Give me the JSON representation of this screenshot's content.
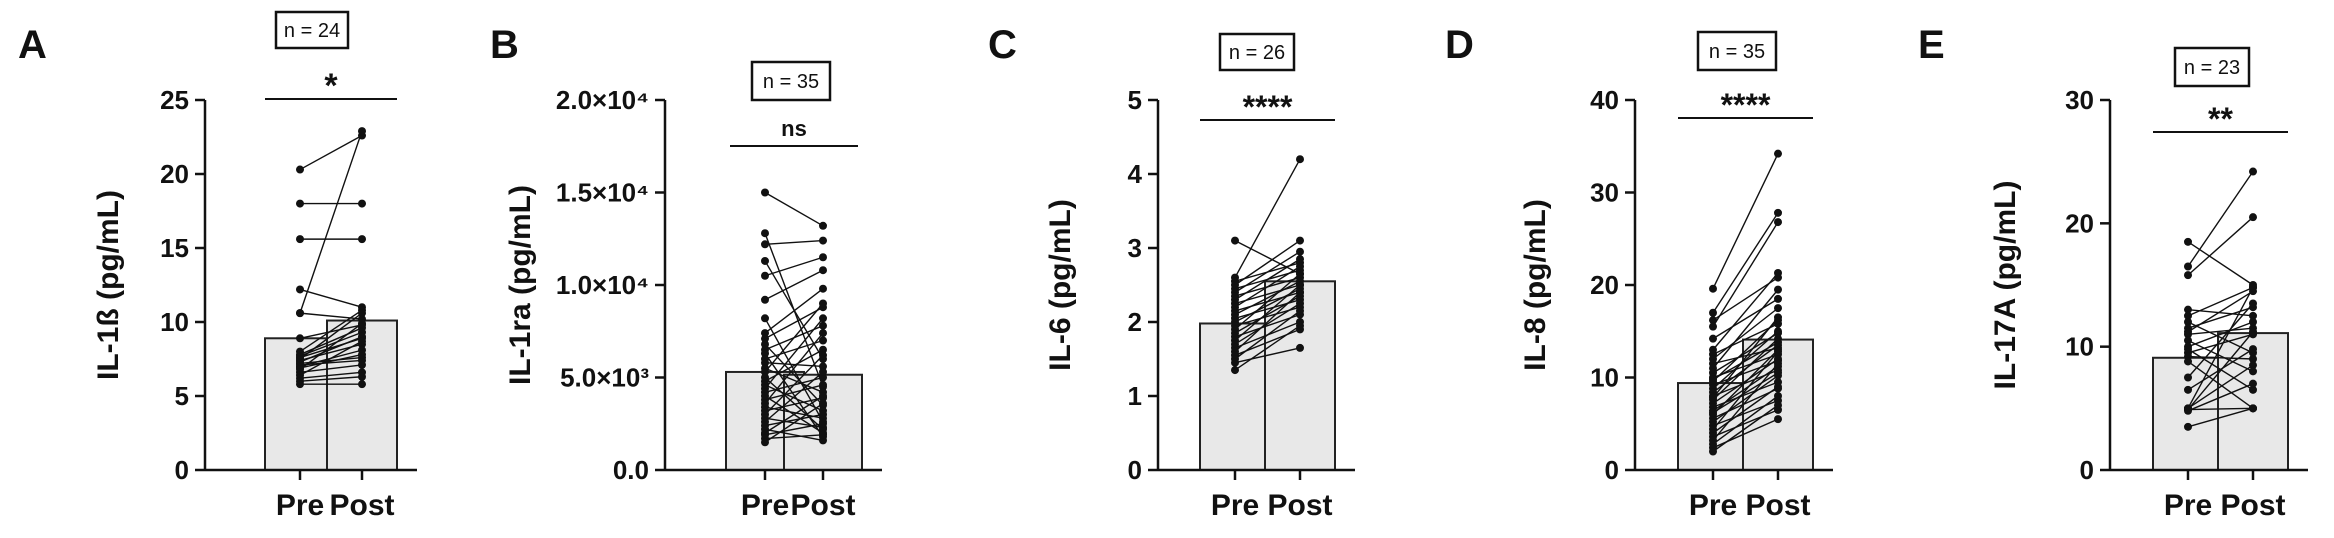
{
  "colors": {
    "bar_fill": "#e8e8e8",
    "bar_stroke": "#222222",
    "line": "#111111",
    "point": "#111111"
  },
  "chart_data": [
    {
      "type": "bar",
      "panel": "A",
      "ylabel": "IL-1ß (pg/mL)",
      "categories": [
        "Pre",
        "Post"
      ],
      "ylim": [
        0,
        25
      ],
      "yticks": [
        0,
        5,
        10,
        15,
        20,
        25
      ],
      "ytick_labels": [
        "0",
        "5",
        "10",
        "15",
        "20",
        "25"
      ],
      "values": [
        8.9,
        10.1
      ],
      "n_label": "n = 24",
      "significance": "*",
      "paired": [
        [
          20.3,
          22.6
        ],
        [
          18.0,
          18.0
        ],
        [
          15.6,
          15.6
        ],
        [
          12.2,
          11.0
        ],
        [
          10.6,
          22.9
        ],
        [
          10.6,
          10.2
        ],
        [
          8.9,
          9.8
        ],
        [
          8.0,
          10.8
        ],
        [
          7.8,
          9.6
        ],
        [
          7.7,
          9.3
        ],
        [
          7.6,
          8.9
        ],
        [
          7.5,
          10.6
        ],
        [
          7.4,
          8.5
        ],
        [
          7.3,
          9.0
        ],
        [
          7.2,
          7.6
        ],
        [
          7.1,
          7.4
        ],
        [
          7.0,
          8.1
        ],
        [
          6.9,
          7.8
        ],
        [
          6.8,
          9.9
        ],
        [
          6.6,
          7.1
        ],
        [
          6.4,
          8.7
        ],
        [
          6.2,
          6.6
        ],
        [
          6.0,
          6.3
        ],
        [
          5.8,
          5.8
        ]
      ]
    },
    {
      "type": "bar",
      "panel": "B",
      "ylabel": "IL-1ra (pg/mL)",
      "categories": [
        "Pre",
        "Post"
      ],
      "ylim": [
        0,
        20000
      ],
      "yticks": [
        0,
        5000,
        10000,
        15000,
        20000
      ],
      "ytick_labels": [
        "0.0",
        "5.0×10³",
        "1.0×10⁴",
        "1.5×10⁴",
        "2.0×10⁴"
      ],
      "values": [
        5300,
        5150
      ],
      "n_label": "n = 35",
      "significance": "ns",
      "paired": [
        [
          15000,
          13200
        ],
        [
          12800,
          4500
        ],
        [
          12200,
          12400
        ],
        [
          11300,
          6000
        ],
        [
          10500,
          11500
        ],
        [
          9200,
          10800
        ],
        [
          8200,
          2600
        ],
        [
          7400,
          9800
        ],
        [
          7100,
          8800
        ],
        [
          6800,
          3500
        ],
        [
          6500,
          7800
        ],
        [
          6300,
          1800
        ],
        [
          6000,
          7000
        ],
        [
          5800,
          5600
        ],
        [
          5500,
          4200
        ],
        [
          5300,
          9000
        ],
        [
          5000,
          2200
        ],
        [
          4800,
          6500
        ],
        [
          4600,
          3200
        ],
        [
          4400,
          8200
        ],
        [
          4200,
          5000
        ],
        [
          4000,
          2000
        ],
        [
          3800,
          4600
        ],
        [
          3600,
          7400
        ],
        [
          3400,
          2800
        ],
        [
          3200,
          3900
        ],
        [
          3000,
          6200
        ],
        [
          2800,
          2300
        ],
        [
          2600,
          5300
        ],
        [
          2400,
          3000
        ],
        [
          2200,
          1600
        ],
        [
          2000,
          4000
        ],
        [
          1900,
          2500
        ],
        [
          1700,
          1900
        ],
        [
          1500,
          3600
        ]
      ]
    },
    {
      "type": "bar",
      "panel": "C",
      "ylabel": "IL-6 (pg/mL)",
      "categories": [
        "Pre",
        "Post"
      ],
      "ylim": [
        0,
        5
      ],
      "yticks": [
        0,
        1,
        2,
        3,
        4,
        5
      ],
      "ytick_labels": [
        "0",
        "1",
        "2",
        "3",
        "4",
        "5"
      ],
      "values": [
        1.98,
        2.55
      ],
      "n_label": "n = 26",
      "significance": "****",
      "paired": [
        [
          3.1,
          2.65
        ],
        [
          2.6,
          4.2
        ],
        [
          2.55,
          2.8
        ],
        [
          2.5,
          3.1
        ],
        [
          2.45,
          2.7
        ],
        [
          2.4,
          2.95
        ],
        [
          2.35,
          2.6
        ],
        [
          2.3,
          2.85
        ],
        [
          2.25,
          2.5
        ],
        [
          2.2,
          2.75
        ],
        [
          2.15,
          2.4
        ],
        [
          2.1,
          2.55
        ],
        [
          2.05,
          2.3
        ],
        [
          2.0,
          2.45
        ],
        [
          1.95,
          2.2
        ],
        [
          1.9,
          2.65
        ],
        [
          1.85,
          2.35
        ],
        [
          1.8,
          2.1
        ],
        [
          1.75,
          2.5
        ],
        [
          1.7,
          2.25
        ],
        [
          1.65,
          2.0
        ],
        [
          1.6,
          2.4
        ],
        [
          1.55,
          1.9
        ],
        [
          1.5,
          2.15
        ],
        [
          1.45,
          1.65
        ],
        [
          1.35,
          1.95
        ]
      ]
    },
    {
      "type": "bar",
      "panel": "D",
      "ylabel": "IL-8 (pg/mL)",
      "categories": [
        "Pre",
        "Post"
      ],
      "ylim": [
        0,
        40
      ],
      "yticks": [
        0,
        10,
        20,
        30,
        40
      ],
      "ytick_labels": [
        "0",
        "10",
        "20",
        "30",
        "40"
      ],
      "values": [
        9.4,
        14.1
      ],
      "n_label": "n = 35",
      "significance": "****",
      "paired": [
        [
          19.6,
          34.2
        ],
        [
          17.0,
          27.8
        ],
        [
          16.2,
          20.8
        ],
        [
          15.5,
          26.8
        ],
        [
          14.2,
          18.5
        ],
        [
          13.0,
          21.3
        ],
        [
          12.5,
          15.8
        ],
        [
          12.0,
          17.5
        ],
        [
          11.5,
          13.2
        ],
        [
          11.0,
          19.5
        ],
        [
          10.5,
          14.8
        ],
        [
          10.0,
          12.5
        ],
        [
          9.6,
          16.2
        ],
        [
          9.2,
          11.8
        ],
        [
          8.8,
          15.0
        ],
        [
          8.4,
          13.5
        ],
        [
          8.0,
          10.8
        ],
        [
          7.6,
          14.2
        ],
        [
          7.2,
          12.0
        ],
        [
          6.8,
          9.5
        ],
        [
          6.4,
          11.2
        ],
        [
          6.0,
          13.0
        ],
        [
          5.6,
          8.8
        ],
        [
          5.2,
          10.2
        ],
        [
          4.8,
          7.5
        ],
        [
          4.4,
          12.8
        ],
        [
          4.0,
          9.0
        ],
        [
          3.6,
          6.5
        ],
        [
          3.2,
          11.5
        ],
        [
          2.8,
          8.0
        ],
        [
          2.4,
          5.5
        ],
        [
          2.0,
          7.0
        ],
        [
          6.2,
          10.5
        ],
        [
          7.8,
          16.5
        ],
        [
          9.8,
          13.8
        ]
      ]
    },
    {
      "type": "bar",
      "panel": "E",
      "ylabel": "IL-17A (pg/mL)",
      "categories": [
        "Pre",
        "Post"
      ],
      "ylim": [
        0,
        30
      ],
      "yticks": [
        0,
        10,
        20,
        30
      ],
      "ytick_labels": [
        "0",
        "10",
        "20",
        "30"
      ],
      "values": [
        9.1,
        11.1
      ],
      "n_label": "n = 23",
      "significance": "**",
      "paired": [
        [
          18.5,
          15.0
        ],
        [
          16.5,
          24.2
        ],
        [
          15.8,
          20.5
        ],
        [
          13.0,
          12.5
        ],
        [
          12.5,
          14.8
        ],
        [
          12.0,
          9.5
        ],
        [
          11.5,
          13.2
        ],
        [
          11.2,
          14.5
        ],
        [
          11.0,
          11.5
        ],
        [
          10.5,
          8.0
        ],
        [
          10.0,
          12.0
        ],
        [
          9.8,
          6.5
        ],
        [
          9.5,
          11.0
        ],
        [
          9.2,
          9.0
        ],
        [
          8.8,
          5.0
        ],
        [
          7.5,
          13.5
        ],
        [
          6.5,
          9.8
        ],
        [
          5.0,
          14.8
        ],
        [
          5.0,
          8.5
        ],
        [
          4.9,
          5.0
        ],
        [
          4.9,
          11.2
        ],
        [
          4.8,
          7.0
        ],
        [
          3.5,
          5.0
        ]
      ]
    }
  ]
}
